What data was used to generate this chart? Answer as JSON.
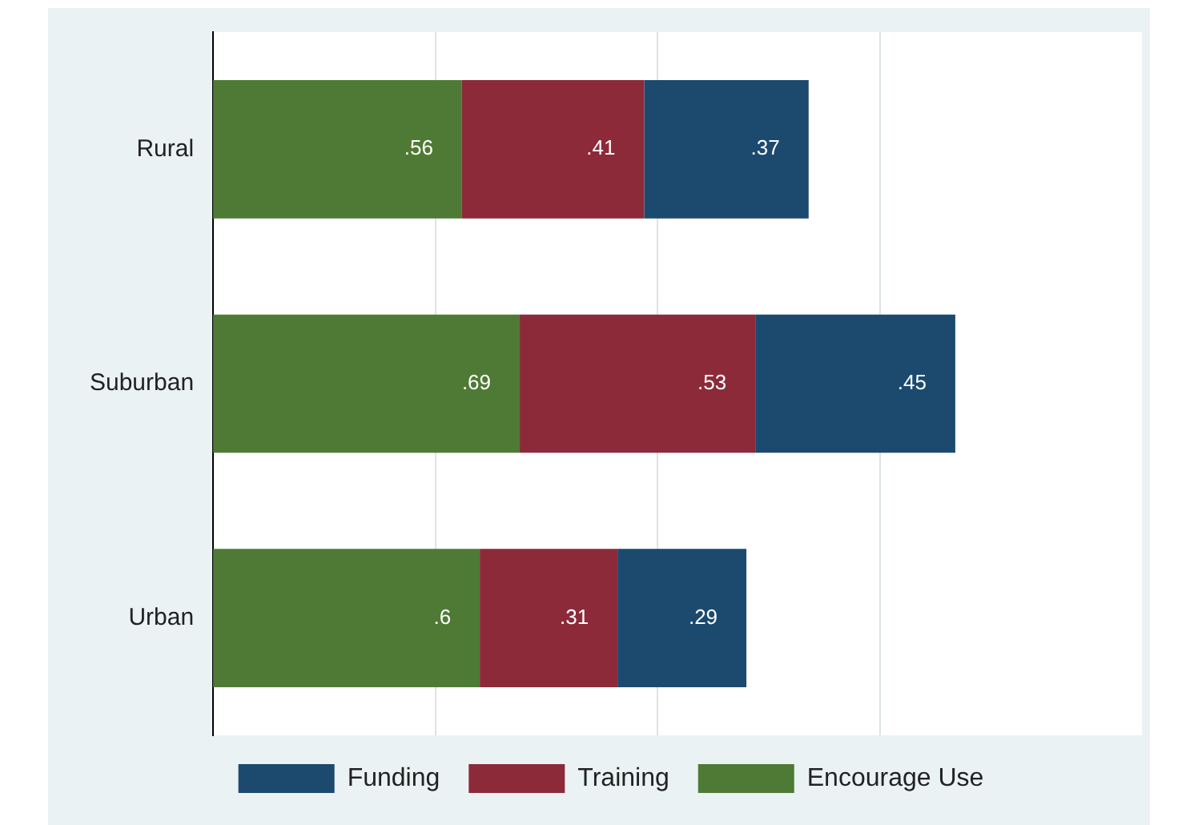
{
  "chart_data": {
    "type": "bar",
    "orientation": "horizontal",
    "stacked": true,
    "categories": [
      "Rural",
      "Suburban",
      "Urban"
    ],
    "series": [
      {
        "name": "Encourage Use",
        "color": "#4f7a35",
        "values": [
          0.56,
          0.69,
          0.6
        ],
        "value_labels": [
          ".56",
          ".69",
          ".6"
        ]
      },
      {
        "name": "Training",
        "color": "#8c2a3a",
        "values": [
          0.41,
          0.53,
          0.31
        ],
        "value_labels": [
          ".41",
          ".53",
          ".31"
        ]
      },
      {
        "name": "Funding",
        "color": "#1b4a6e",
        "values": [
          0.37,
          0.45,
          0.29
        ],
        "value_labels": [
          ".37",
          ".45",
          ".29"
        ]
      }
    ],
    "xlim": [
      0,
      2.09
    ],
    "xticks": [
      {
        "value": 0.5,
        "label": null
      },
      {
        "value": 1,
        "label": null
      },
      {
        "value": 1.5,
        "label": null
      }
    ],
    "grid": "x",
    "legend": "bottom",
    "tick_labels": "y"
  }
}
